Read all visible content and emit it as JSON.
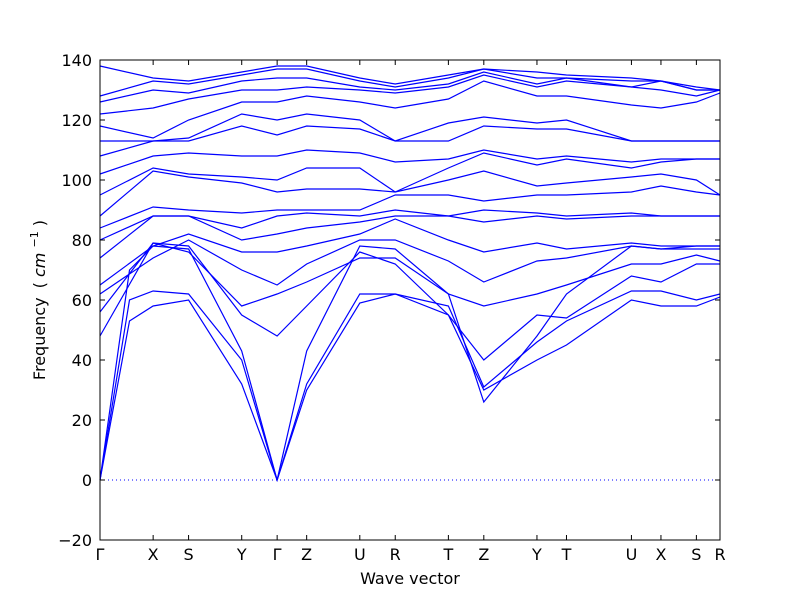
{
  "chart_data": {
    "type": "line",
    "xlabel": "Wave vector",
    "ylabel_text": "Frequency",
    "ylabel_unit_open": "(",
    "ylabel_unit_main": "cm",
    "ylabel_unit_exp": "−1",
    "ylabel_unit_close": ")",
    "ylim": [
      -20,
      140
    ],
    "yticks": [
      -20,
      0,
      20,
      40,
      60,
      80,
      100,
      120,
      140
    ],
    "xlim": [
      0,
      21
    ],
    "xticks": [
      {
        "label": "Γ",
        "x": 0
      },
      {
        "label": "X",
        "x": 1.8
      },
      {
        "label": "S",
        "x": 3.0
      },
      {
        "label": "Y",
        "x": 4.8
      },
      {
        "label": "Γ",
        "x": 6.0
      },
      {
        "label": "Z",
        "x": 7.0
      },
      {
        "label": "U",
        "x": 8.8
      },
      {
        "label": "R",
        "x": 10.0
      },
      {
        "label": "T",
        "x": 11.8
      },
      {
        "label": "Z",
        "x": 13.0
      },
      {
        "label": "Y",
        "x": 14.8
      },
      {
        "label": "T",
        "x": 15.8
      },
      {
        "label": "U",
        "x": 18.0
      },
      {
        "label": "X",
        "x": 19.0
      },
      {
        "label": "S",
        "x": 20.2
      },
      {
        "label": "R",
        "x": 21.0
      }
    ],
    "zero_line": 0,
    "color": "#0000ff",
    "grid": false,
    "series": [
      {
        "x": [
          0,
          1,
          1.8,
          3.0,
          4.8,
          6.0,
          7.0,
          8.8,
          10.0,
          11.8,
          13.0,
          14.8,
          15.8,
          18.0,
          19.0,
          20.2,
          21.0
        ],
        "y": [
          0,
          53,
          58,
          60,
          32,
          0,
          30,
          59,
          62,
          55,
          30,
          40,
          45,
          60,
          58,
          58,
          61
        ]
      },
      {
        "x": [
          0,
          1,
          1.8,
          3.0,
          4.8,
          6.0,
          7.0,
          8.8,
          10.0,
          11.8,
          13.0,
          14.8,
          15.8,
          18.0,
          19.0,
          20.2,
          21.0
        ],
        "y": [
          0,
          60,
          63,
          62,
          40,
          0,
          32,
          62,
          62,
          58,
          31,
          46,
          53,
          63,
          63,
          60,
          62
        ]
      },
      {
        "x": [
          0,
          1,
          1.8,
          3.0,
          4.8,
          6.0,
          7.0,
          8.8,
          10.0,
          11.8,
          13.0,
          14.8,
          15.8,
          18.0,
          19.0,
          20.2,
          21.0
        ],
        "y": [
          0,
          70,
          78,
          77,
          43,
          0,
          43,
          78,
          77,
          62,
          26,
          48,
          62,
          78,
          77,
          77,
          77
        ]
      },
      {
        "x": [
          0,
          1.8,
          3.0,
          4.8,
          6.0,
          7.0,
          8.8,
          10.0,
          11.8,
          13.0,
          14.8,
          15.8,
          18.0,
          19.0,
          20.2,
          21.0
        ],
        "y": [
          48,
          79,
          78,
          55,
          48,
          58,
          76,
          72,
          55,
          40,
          55,
          54,
          68,
          66,
          72,
          72
        ]
      },
      {
        "x": [
          0,
          1.8,
          3.0,
          4.8,
          6.0,
          7.0,
          8.8,
          10.0,
          11.8,
          13.0,
          14.8,
          15.8,
          18.0,
          19.0,
          20.2,
          21.0
        ],
        "y": [
          56,
          79,
          76,
          58,
          62,
          66,
          74,
          74,
          62,
          58,
          62,
          65,
          72,
          72,
          75,
          73
        ]
      },
      {
        "x": [
          0,
          1.8,
          3.0,
          4.8,
          6.0,
          7.0,
          8.8,
          10.0,
          11.8,
          13.0,
          14.8,
          15.8,
          18.0,
          19.0,
          20.2,
          21.0
        ],
        "y": [
          62,
          74,
          80,
          70,
          65,
          72,
          80,
          80,
          73,
          66,
          73,
          74,
          78,
          77,
          78,
          78
        ]
      },
      {
        "x": [
          0,
          1.8,
          3.0,
          4.8,
          6.0,
          7.0,
          8.8,
          10.0,
          11.8,
          13.0,
          14.8,
          15.8,
          18.0,
          19.0,
          20.2,
          21.0
        ],
        "y": [
          65,
          78,
          82,
          76,
          76,
          78,
          82,
          87,
          80,
          76,
          79,
          77,
          79,
          78,
          78,
          78
        ]
      },
      {
        "x": [
          0,
          1.8,
          3.0,
          4.8,
          6.0,
          7.0,
          8.8,
          10.0,
          11.8,
          13.0,
          14.8,
          15.8,
          18.0,
          19.0,
          20.2,
          21.0
        ],
        "y": [
          74,
          88,
          88,
          80,
          82,
          84,
          86,
          88,
          88,
          86,
          88,
          87,
          88,
          88,
          88,
          88
        ]
      },
      {
        "x": [
          0,
          1.8,
          3.0,
          4.8,
          6.0,
          7.0,
          8.8,
          10.0,
          11.8,
          13.0,
          14.8,
          15.8,
          18.0,
          19.0,
          20.2,
          21.0
        ],
        "y": [
          80,
          88,
          88,
          84,
          88,
          89,
          88,
          90,
          88,
          90,
          89,
          88,
          89,
          88,
          88,
          88
        ]
      },
      {
        "x": [
          0,
          1.8,
          3.0,
          4.8,
          6.0,
          7.0,
          8.8,
          10.0,
          11.8,
          13.0,
          14.8,
          15.8,
          18.0,
          19.0,
          20.2,
          21.0
        ],
        "y": [
          84,
          91,
          90,
          89,
          90,
          90,
          90,
          95,
          95,
          93,
          95,
          95,
          96,
          98,
          96,
          95
        ]
      },
      {
        "x": [
          0,
          1.8,
          3.0,
          4.8,
          6.0,
          7.0,
          8.8,
          10.0,
          11.8,
          13.0,
          14.8,
          15.8,
          18.0,
          19.0,
          20.2,
          21.0
        ],
        "y": [
          88,
          103,
          101,
          99,
          96,
          97,
          97,
          96,
          100,
          103,
          98,
          99,
          101,
          102,
          100,
          95
        ]
      },
      {
        "x": [
          0,
          1.8,
          3.0,
          4.8,
          6.0,
          7.0,
          8.8,
          10.0,
          11.8,
          13.0,
          14.8,
          15.8,
          18.0,
          19.0,
          20.2,
          21.0
        ],
        "y": [
          95,
          104,
          102,
          101,
          100,
          104,
          104,
          96,
          104,
          109,
          105,
          107,
          104,
          106,
          107,
          107
        ]
      },
      {
        "x": [
          0,
          1.8,
          3.0,
          4.8,
          6.0,
          7.0,
          8.8,
          10.0,
          11.8,
          13.0,
          14.8,
          15.8,
          18.0,
          19.0,
          20.2,
          21.0
        ],
        "y": [
          102,
          108,
          109,
          108,
          108,
          110,
          109,
          106,
          107,
          110,
          107,
          108,
          106,
          107,
          107,
          107
        ]
      },
      {
        "x": [
          0,
          1.8,
          3.0,
          4.8,
          6.0,
          7.0,
          8.8,
          10.0,
          11.8,
          13.0,
          14.8,
          15.8,
          18.0,
          19.0,
          20.2,
          21.0
        ],
        "y": [
          108,
          113,
          113,
          118,
          115,
          118,
          117,
          113,
          113,
          118,
          117,
          117,
          113,
          113,
          113,
          113
        ]
      },
      {
        "x": [
          0,
          1.8,
          3.0,
          4.8,
          6.0,
          7.0,
          8.8,
          10.0,
          11.8,
          13.0,
          14.8,
          15.8,
          18.0,
          19.0,
          20.2,
          21.0
        ],
        "y": [
          113,
          113,
          114,
          122,
          120,
          122,
          120,
          113,
          119,
          121,
          119,
          120,
          113,
          113,
          113,
          113
        ]
      },
      {
        "x": [
          0,
          1.8,
          3.0,
          4.8,
          6.0,
          7.0,
          8.8,
          10.0,
          11.8,
          13.0,
          14.8,
          15.8,
          18.0,
          19.0,
          20.2,
          21.0
        ],
        "y": [
          118,
          114,
          120,
          126,
          126,
          128,
          126,
          124,
          127,
          133,
          128,
          128,
          125,
          124,
          126,
          129
        ]
      },
      {
        "x": [
          0,
          1.8,
          3.0,
          4.8,
          6.0,
          7.0,
          8.8,
          10.0,
          11.8,
          13.0,
          14.8,
          15.8,
          18.0,
          19.0,
          20.2,
          21.0
        ],
        "y": [
          122,
          124,
          127,
          130,
          130,
          131,
          130,
          129,
          131,
          135,
          131,
          133,
          131,
          130,
          128,
          130
        ]
      },
      {
        "x": [
          0,
          1.8,
          3.0,
          4.8,
          6.0,
          7.0,
          8.8,
          10.0,
          11.8,
          13.0,
          14.8,
          15.8,
          18.0,
          19.0,
          20.2,
          21.0
        ],
        "y": [
          126,
          130,
          129,
          133,
          134,
          134,
          131,
          130,
          132,
          136,
          132,
          134,
          131,
          133,
          130,
          130
        ]
      },
      {
        "x": [
          0,
          1.8,
          3.0,
          4.8,
          6.0,
          7.0,
          8.8,
          10.0,
          11.8,
          13.0,
          14.8,
          15.8,
          18.0,
          19.0,
          20.2,
          21.0
        ],
        "y": [
          128,
          133,
          132,
          135,
          137,
          137,
          133,
          131,
          134,
          137,
          134,
          134,
          133,
          133,
          130,
          130
        ]
      },
      {
        "x": [
          0,
          1.8,
          3.0,
          4.8,
          6.0,
          7.0,
          8.8,
          10.0,
          11.8,
          13.0,
          14.8,
          15.8,
          18.0,
          19.0,
          20.2,
          21.0
        ],
        "y": [
          138,
          134,
          133,
          136,
          138,
          138,
          134,
          132,
          135,
          137,
          136,
          135,
          134,
          133,
          131,
          130
        ]
      }
    ]
  }
}
